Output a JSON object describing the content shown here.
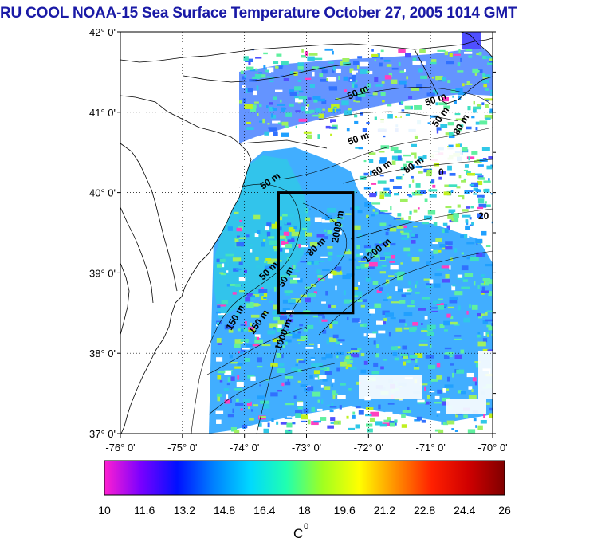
{
  "title": "RU COOL  NOAA-15 Sea Surface Temperature October 27, 2005 1014 GMT",
  "map": {
    "lat_ticks": [
      "42° 0'",
      "41° 0'",
      "40° 0'",
      "39° 0'",
      "38° 0'",
      "37° 0'"
    ],
    "lon_ticks": [
      "-76° 0'",
      "-75° 0'",
      "-74° 0'",
      "-73° 0'",
      "-72° 0'",
      "-71° 0'",
      "-70° 0'"
    ],
    "lon_range": [
      -76,
      -70
    ],
    "lat_range": [
      37,
      42
    ],
    "grid": true,
    "contour_labels": [
      "50 m",
      "50 m",
      "50 m",
      "50 m",
      "80 m",
      "80 m",
      "50 m",
      "50 m",
      "80 m",
      "1200 m",
      "2000 m",
      "150 m",
      "1000 m",
      "50 m",
      "80 m",
      "150 m",
      "20",
      "0"
    ],
    "study_box": {
      "lon": [
        -73.45,
        -72.25
      ],
      "lat": [
        38.5,
        40.0
      ]
    }
  },
  "colorbar": {
    "min": 10,
    "max": 26,
    "ticks": [
      "10",
      "11.6",
      "13.2",
      "14.8",
      "16.4",
      "18",
      "19.6",
      "21.2",
      "22.8",
      "24.4",
      "26"
    ],
    "unit_label": "C",
    "unit_superscript": "0",
    "colors": [
      "#ff1fd0",
      "#7a00ff",
      "#0010ff",
      "#0080ff",
      "#00d8ff",
      "#20ffb0",
      "#a0ff20",
      "#ffff00",
      "#ff9000",
      "#ff2000",
      "#d00000",
      "#800000"
    ]
  },
  "sst_colors": [
    "#3070ff",
    "#20a0ff",
    "#30c8e8",
    "#40e0c0",
    "#60f0a0",
    "#a0f060",
    "#5050ff",
    "#ff40c0",
    "#c0f020"
  ]
}
